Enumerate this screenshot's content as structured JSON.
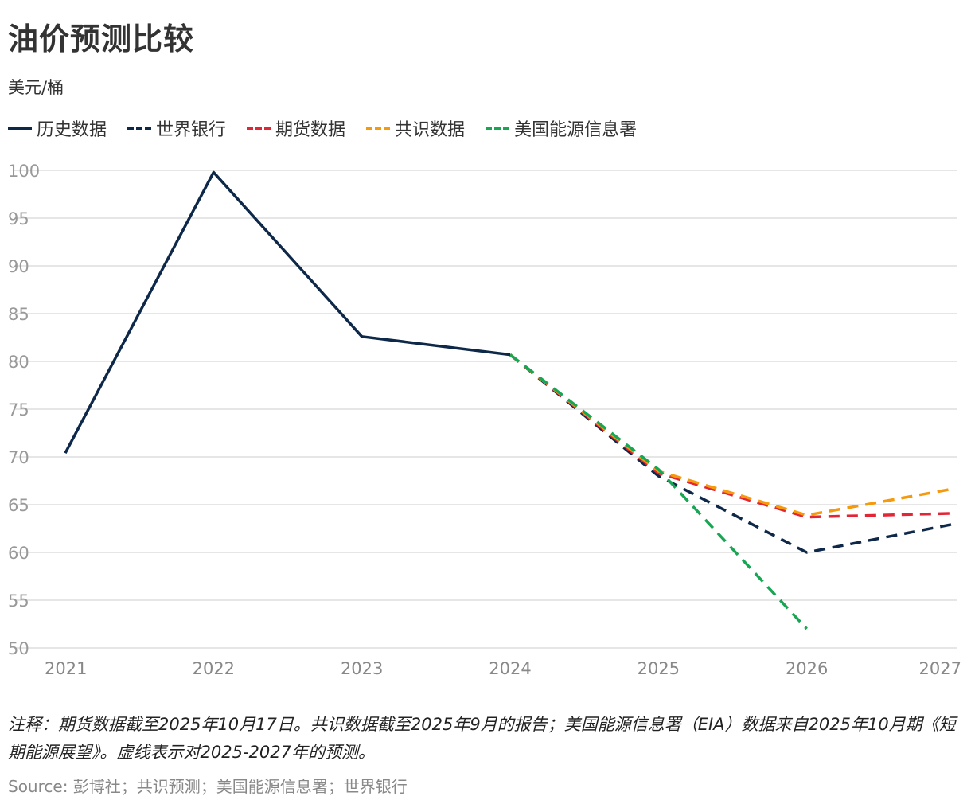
{
  "title": "油价预测比较",
  "unit": "美元/桶",
  "note": "注释：期货数据截至2025年10月17日。共识数据截至2025年9月的报告；美国能源信息署（EIA）数据来自2025年10月期《短期能源展望》。虚线表示对2025-2027年的预测。",
  "source": "Source: 彭博社；共识预测；美国能源信息署；世界银行",
  "colors": {
    "history": "#0d2849",
    "worldbank": "#0d2849",
    "futures": "#e32636",
    "consensus": "#f59a0c",
    "eia": "#17a653",
    "grid": "#dddddd",
    "tick": "#999999"
  },
  "chart_data": {
    "type": "line",
    "title": "油价预测比较",
    "ylabel": "美元/桶",
    "xlabel": "",
    "ylim": [
      50,
      100
    ],
    "yticks": [
      100,
      95,
      90,
      85,
      80,
      75,
      70,
      65,
      60,
      55,
      50
    ],
    "categories": [
      "2021",
      "2022",
      "2023",
      "2024",
      "2025",
      "2026",
      "2027"
    ],
    "grid": true,
    "legend_position": "top-left",
    "series": [
      {
        "key": "history",
        "name": "历史数据",
        "dashed": false,
        "values": [
          70.4,
          99.8,
          82.6,
          80.7,
          null,
          null,
          null
        ]
      },
      {
        "key": "worldbank",
        "name": "世界银行",
        "dashed": true,
        "values": [
          null,
          null,
          null,
          80.7,
          68.0,
          60.0,
          63.0
        ]
      },
      {
        "key": "futures",
        "name": "期货数据",
        "dashed": true,
        "values": [
          null,
          null,
          null,
          80.7,
          68.3,
          63.7,
          64.1
        ]
      },
      {
        "key": "consensus",
        "name": "共识数据",
        "dashed": true,
        "values": [
          null,
          null,
          null,
          80.7,
          68.5,
          63.9,
          66.7
        ]
      },
      {
        "key": "eia",
        "name": "美国能源信息署",
        "dashed": true,
        "values": [
          null,
          null,
          null,
          80.7,
          68.7,
          52.0,
          null
        ]
      }
    ]
  }
}
